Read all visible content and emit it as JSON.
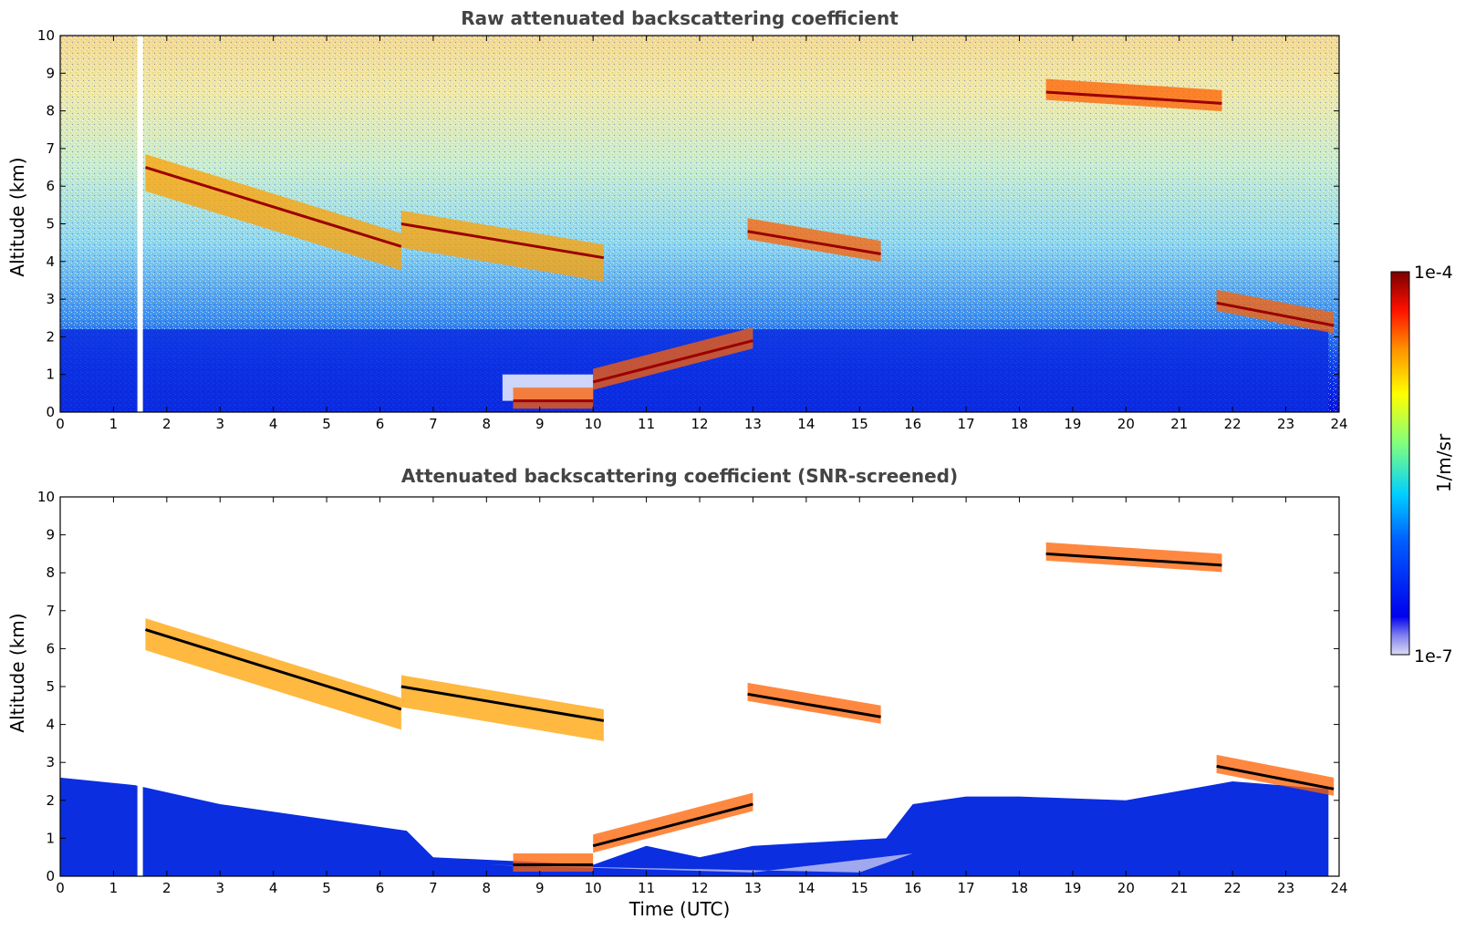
{
  "chart_data": [
    {
      "type": "heatmap",
      "title": "Raw attenuated backscattering coefficient",
      "xlabel": "",
      "ylabel": "Altitude (km)",
      "xlim": [
        0,
        24
      ],
      "ylim": [
        0,
        10
      ],
      "x_ticks": [
        "0",
        "1",
        "2",
        "3",
        "4",
        "5",
        "6",
        "7",
        "8",
        "9",
        "10",
        "11",
        "12",
        "13",
        "14",
        "15",
        "16",
        "17",
        "18",
        "19",
        "20",
        "21",
        "22",
        "23",
        "24"
      ],
      "y_ticks": [
        "0",
        "1",
        "2",
        "3",
        "4",
        "5",
        "6",
        "7",
        "8",
        "9",
        "10"
      ],
      "data_gaps_utc": [
        1.5
      ],
      "cloud_layers": [
        {
          "t_start": 1.6,
          "t_end": 6.4,
          "alt_start_km": 6.5,
          "alt_end_km": 4.4
        },
        {
          "t_start": 6.4,
          "t_end": 10.2,
          "alt_start_km": 5.0,
          "alt_end_km": 4.1
        },
        {
          "t_start": 12.9,
          "t_end": 15.4,
          "alt_start_km": 4.8,
          "alt_end_km": 4.2
        },
        {
          "t_start": 10.0,
          "t_end": 13.0,
          "alt_start_km": 0.8,
          "alt_end_km": 1.9
        },
        {
          "t_start": 8.5,
          "t_end": 10.0,
          "alt_start_km": 0.3,
          "alt_end_km": 0.3
        },
        {
          "t_start": 21.7,
          "t_end": 23.9,
          "alt_start_km": 2.9,
          "alt_end_km": 2.3
        },
        {
          "t_start": 18.5,
          "t_end": 21.8,
          "alt_start_km": 8.5,
          "alt_end_km": 8.2
        }
      ]
    },
    {
      "type": "heatmap",
      "title": "Attenuated backscattering coefficient (SNR-screened)",
      "xlabel": "Time (UTC)",
      "ylabel": "Altitude (km)",
      "xlim": [
        0,
        24
      ],
      "ylim": [
        0,
        10
      ],
      "x_ticks": [
        "0",
        "1",
        "2",
        "3",
        "4",
        "5",
        "6",
        "7",
        "8",
        "9",
        "10",
        "11",
        "12",
        "13",
        "14",
        "15",
        "16",
        "17",
        "18",
        "19",
        "20",
        "21",
        "22",
        "23",
        "24"
      ],
      "y_ticks": [
        "0",
        "1",
        "2",
        "3",
        "4",
        "5",
        "6",
        "7",
        "8",
        "9",
        "10"
      ],
      "data_gaps_utc": [
        1.5
      ]
    }
  ],
  "colorbar": {
    "label": "1/m/sr",
    "max_label": "1e-4",
    "min_label": "1e-7",
    "scale": "log",
    "colormap": "jet"
  },
  "colors": {
    "low": "#0000cc",
    "mid_low": "#00aaff",
    "mid": "#a0f080",
    "mid_high": "#ffd000",
    "high": "#ff3000",
    "max": "#7a0000",
    "title_gray": "#444444"
  }
}
